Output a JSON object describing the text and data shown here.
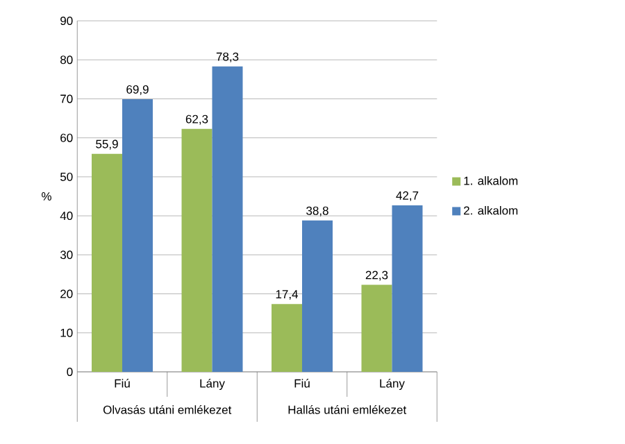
{
  "chart_data": {
    "type": "bar",
    "ylabel": "%",
    "categories": [
      "Fiú",
      "Lány",
      "Fiú",
      "Lány"
    ],
    "series": [
      {
        "name": "1. alkalom",
        "color": "#9bbb59",
        "values": [
          55.9,
          62.3,
          17.4,
          22.3
        ],
        "value_labels": [
          "55,9",
          "62,3",
          "17,4",
          "22,3"
        ]
      },
      {
        "name": "2. alkalom",
        "color": "#4f81bd",
        "values": [
          69.9,
          78.3,
          38.8,
          42.7
        ],
        "value_labels": [
          "69,9",
          "78,3",
          "38,8",
          "42,7"
        ]
      }
    ],
    "annotations": [
      "Olvasás utáni emlékezet",
      "Hallás utáni emlékezet"
    ],
    "ylim": [
      0,
      90
    ],
    "yticks": [
      0,
      10,
      20,
      30,
      40,
      50,
      60,
      70,
      80,
      90
    ],
    "grid": "y",
    "legend": "right"
  }
}
